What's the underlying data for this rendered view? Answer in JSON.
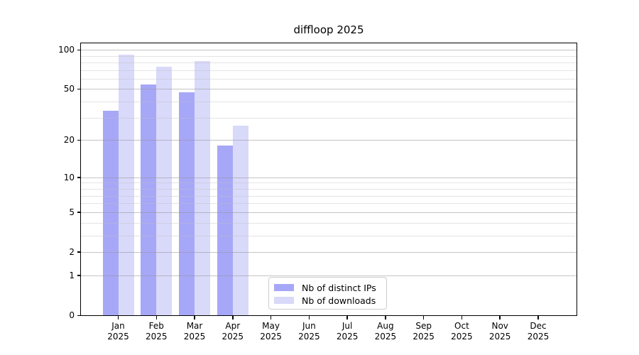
{
  "title": "diffloop 2025",
  "colors": {
    "ips_bar": "#a7a7f8",
    "downloads_bar": "#d9d9fa",
    "grid_major": "#c6c6c6",
    "grid_minor": "#eaeaea",
    "axis": "#000000",
    "legend_border": "#cccccc"
  },
  "chart_data": {
    "type": "bar",
    "scale": "log1p",
    "title": "diffloop 2025",
    "categories": [
      "Jan",
      "Feb",
      "Mar",
      "Apr",
      "May",
      "Jun",
      "Jul",
      "Aug",
      "Sep",
      "Oct",
      "Nov",
      "Dec"
    ],
    "x_year": "2025",
    "series": [
      {
        "name": "Nb of distinct IPs",
        "color_key": "ips_bar",
        "values": [
          34,
          54,
          47,
          18,
          0,
          0,
          0,
          0,
          0,
          0,
          0,
          0
        ]
      },
      {
        "name": "Nb of downloads",
        "color_key": "downloads_bar",
        "values": [
          92,
          74,
          82,
          26,
          0,
          0,
          0,
          0,
          0,
          0,
          0,
          0
        ]
      }
    ],
    "y_ticks": [
      0,
      1,
      2,
      5,
      10,
      20,
      50,
      100
    ],
    "y_minor_ticks": [
      3,
      4,
      6,
      7,
      8,
      9,
      30,
      40,
      60,
      70,
      80,
      90
    ],
    "ylim": [
      0,
      112
    ],
    "grid": "on",
    "legend_position": "lower center"
  }
}
